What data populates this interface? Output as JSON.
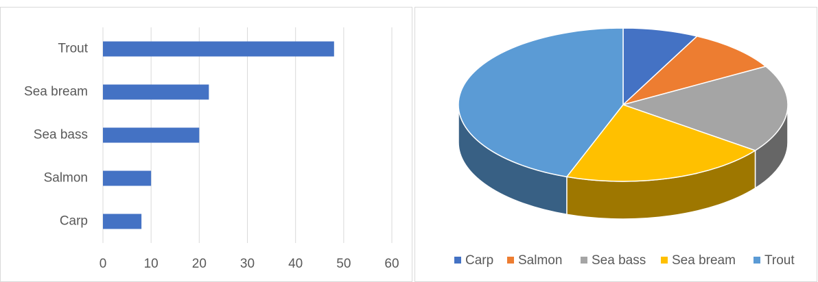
{
  "chart_data": [
    {
      "type": "bar",
      "orientation": "horizontal",
      "categories": [
        "Carp",
        "Salmon",
        "Sea bass",
        "Sea bream",
        "Trout"
      ],
      "values": [
        8,
        10,
        20,
        22,
        48
      ],
      "color": "#4472c4",
      "xlim": [
        0,
        60
      ],
      "xticks": [
        0,
        10,
        20,
        30,
        40,
        50,
        60
      ],
      "grid": true
    },
    {
      "type": "pie",
      "style": "3d",
      "categories": [
        "Carp",
        "Salmon",
        "Sea bass",
        "Sea bream",
        "Trout"
      ],
      "values": [
        8,
        10,
        20,
        22,
        48
      ],
      "colors": [
        "#4472c4",
        "#ed7d31",
        "#a5a5a5",
        "#ffc000",
        "#5b9bd5"
      ],
      "legend": "bottom"
    }
  ]
}
